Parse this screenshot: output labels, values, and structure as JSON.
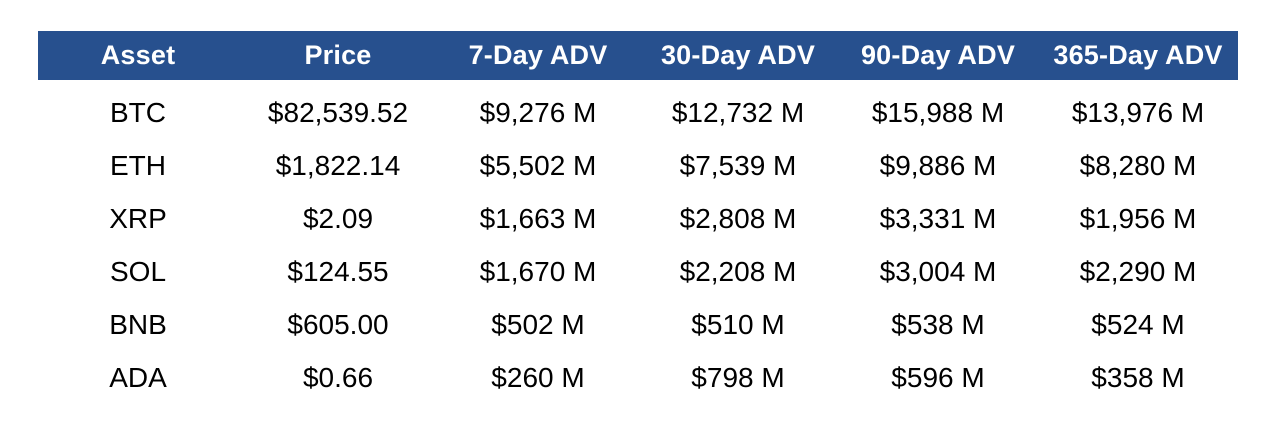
{
  "colors": {
    "header_bg": "#27508E",
    "header_text": "#FFFFFF",
    "body_text": "#000000",
    "page_bg": "#FFFFFF"
  },
  "table": {
    "columns": [
      "Asset",
      "Price",
      "7-Day ADV",
      "30-Day ADV",
      "90-Day ADV",
      "365-Day ADV"
    ],
    "rows": [
      [
        "BTC",
        "$82,539.52",
        "$9,276 M",
        "$12,732 M",
        "$15,988 M",
        "$13,976 M"
      ],
      [
        "ETH",
        "$1,822.14",
        "$5,502 M",
        "$7,539 M",
        "$9,886 M",
        "$8,280 M"
      ],
      [
        "XRP",
        "$2.09",
        "$1,663 M",
        "$2,808 M",
        "$3,331 M",
        "$1,956 M"
      ],
      [
        "SOL",
        "$124.55",
        "$1,670 M",
        "$2,208 M",
        "$3,004 M",
        "$2,290 M"
      ],
      [
        "BNB",
        "$605.00",
        "$502 M",
        "$510 M",
        "$538 M",
        "$524 M"
      ],
      [
        "ADA",
        "$0.66",
        "$260 M",
        "$798 M",
        "$596 M",
        "$358 M"
      ]
    ]
  },
  "chart_data": {
    "type": "table",
    "title": "",
    "columns": [
      "Asset",
      "Price",
      "7-Day ADV",
      "30-Day ADV",
      "90-Day ADV",
      "365-Day ADV"
    ],
    "assets": [
      "BTC",
      "ETH",
      "XRP",
      "SOL",
      "BNB",
      "ADA"
    ],
    "price_usd": [
      82539.52,
      1822.14,
      2.09,
      124.55,
      605.0,
      0.66
    ],
    "adv_7_day_musd": [
      9276,
      5502,
      1663,
      1670,
      502,
      260
    ],
    "adv_30_day_musd": [
      12732,
      7539,
      2808,
      2208,
      510,
      798
    ],
    "adv_90_day_musd": [
      15988,
      9886,
      3331,
      3004,
      538,
      596
    ],
    "adv_365_day_musd": [
      13976,
      8280,
      1956,
      2290,
      524,
      358
    ],
    "layout": {
      "header_background": "#27508E",
      "header_text_color": "#FFFFFF",
      "grid": "off",
      "alignment": "center"
    }
  }
}
